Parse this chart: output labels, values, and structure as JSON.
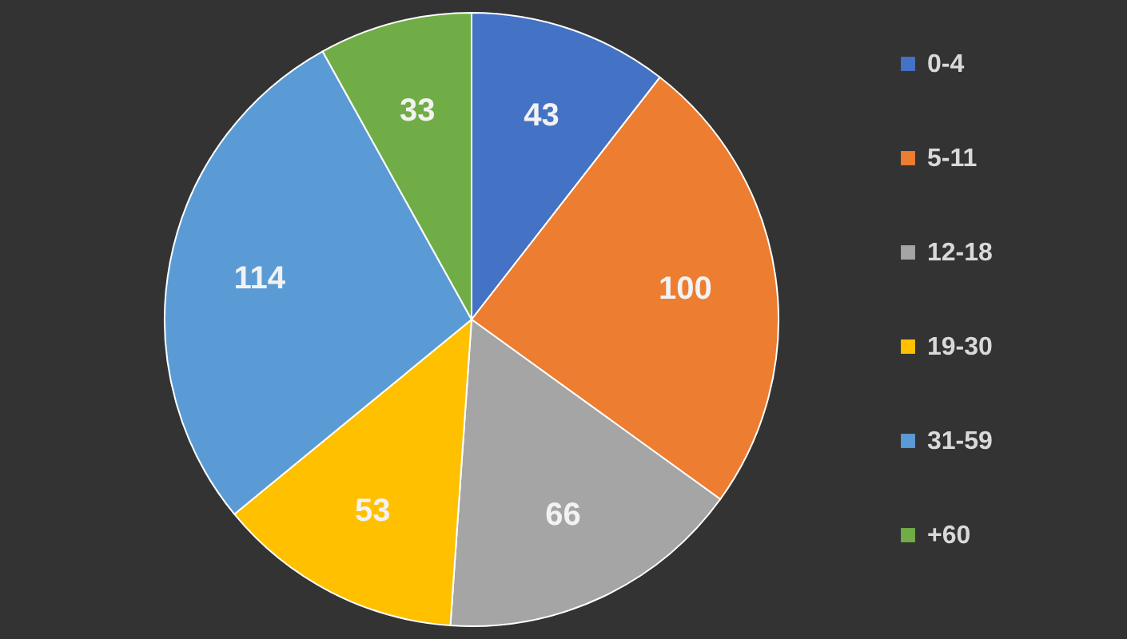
{
  "chart_data": {
    "type": "pie",
    "categories": [
      "0-4",
      "5-11",
      "12-18",
      "19-30",
      "31-59",
      "+60"
    ],
    "values": [
      43,
      100,
      66,
      53,
      114,
      33
    ],
    "colors": [
      "#4472c4",
      "#ed7d31",
      "#a5a5a5",
      "#ffc000",
      "#5b9bd5",
      "#70ad47"
    ],
    "data_labels": true,
    "legend": "right"
  }
}
